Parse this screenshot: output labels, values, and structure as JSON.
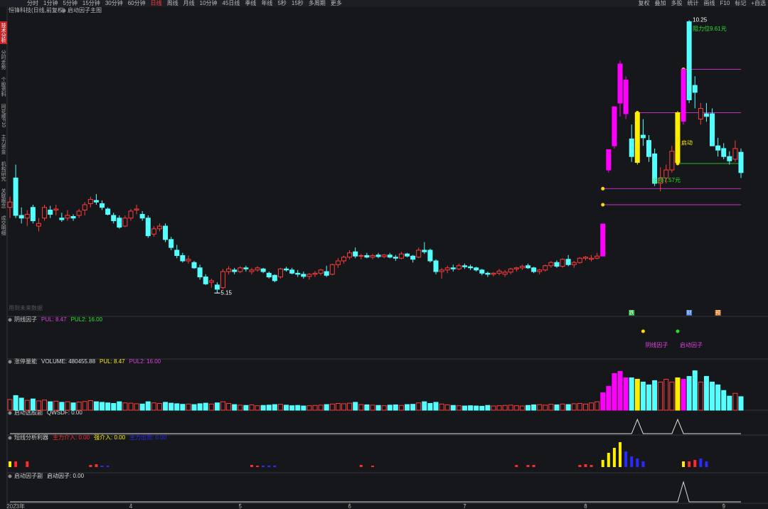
{
  "toolbar": {
    "items": [
      "分时",
      "1分钟",
      "5分钟",
      "15分钟",
      "30分钟",
      "60分钟",
      "日线",
      "周线",
      "月线",
      "10分钟",
      "45日线",
      "季线",
      "年线",
      "5秒",
      "15秒",
      "多周期",
      "更多"
    ],
    "active_index": 6,
    "right_items": [
      "复权",
      "叠加",
      "多股",
      "统计",
      "画线",
      "F10",
      "标记",
      "+自选"
    ]
  },
  "sidebar": {
    "items": [
      "技术分析",
      "分时走势",
      "个股资料",
      "同花顺F10",
      "主力资金",
      "机构研究",
      "关联概念",
      "成交明细"
    ],
    "active_index": 0
  },
  "header": {
    "stock": "恒锋科技(日线,前复权)",
    "indicator": "启动因子主图"
  },
  "main": {
    "type": "candlestick",
    "ylim": [
      4.78,
      10.36
    ],
    "up_color": "#ff3b3b",
    "down_color": "#54ffff",
    "candles": [
      [
        6.75,
        6.95,
        6.55,
        6.85
      ],
      [
        7.3,
        7.55,
        6.55,
        6.6
      ],
      [
        6.6,
        6.75,
        6.45,
        6.55
      ],
      [
        6.55,
        6.7,
        6.4,
        6.62
      ],
      [
        6.75,
        6.8,
        6.45,
        6.5
      ],
      [
        6.4,
        6.55,
        6.3,
        6.45
      ],
      [
        6.55,
        6.8,
        6.5,
        6.75
      ],
      [
        6.7,
        6.78,
        6.55,
        6.62
      ],
      [
        6.7,
        6.8,
        6.6,
        6.72
      ],
      [
        6.55,
        6.65,
        6.48,
        6.52
      ],
      [
        6.55,
        6.7,
        6.5,
        6.6
      ],
      [
        6.58,
        6.62,
        6.5,
        6.55
      ],
      [
        6.6,
        6.72,
        6.55,
        6.68
      ],
      [
        6.7,
        6.85,
        6.6,
        6.8
      ],
      [
        6.82,
        6.95,
        6.75,
        6.9
      ],
      [
        6.88,
        7.0,
        6.8,
        6.85
      ],
      [
        6.82,
        6.88,
        6.7,
        6.75
      ],
      [
        6.72,
        6.75,
        6.6,
        6.62
      ],
      [
        6.6,
        6.65,
        6.45,
        6.5
      ],
      [
        6.55,
        6.6,
        6.35,
        6.38
      ],
      [
        6.4,
        6.6,
        6.38,
        6.55
      ],
      [
        6.55,
        6.72,
        6.5,
        6.68
      ],
      [
        6.7,
        6.8,
        6.62,
        6.72
      ],
      [
        6.62,
        6.68,
        6.5,
        6.55
      ],
      [
        6.55,
        6.6,
        6.18,
        6.22
      ],
      [
        6.25,
        6.4,
        6.2,
        6.35
      ],
      [
        6.35,
        6.45,
        6.3,
        6.4
      ],
      [
        6.4,
        6.45,
        6.1,
        6.15
      ],
      [
        6.15,
        6.2,
        5.95,
        6.0
      ],
      [
        5.95,
        6.05,
        5.8,
        5.85
      ],
      [
        5.85,
        5.9,
        5.72,
        5.75
      ],
      [
        5.75,
        5.85,
        5.7,
        5.78
      ],
      [
        5.72,
        5.75,
        5.6,
        5.62
      ],
      [
        5.62,
        5.68,
        5.4,
        5.45
      ],
      [
        5.45,
        5.5,
        5.3,
        5.32
      ],
      [
        5.35,
        5.42,
        5.25,
        5.38
      ],
      [
        5.3,
        5.35,
        5.15,
        5.22
      ],
      [
        5.25,
        5.6,
        5.22,
        5.55
      ],
      [
        5.55,
        5.65,
        5.5,
        5.6
      ],
      [
        5.58,
        5.62,
        5.5,
        5.55
      ],
      [
        5.55,
        5.65,
        5.52,
        5.62
      ],
      [
        5.62,
        5.66,
        5.55,
        5.6
      ],
      [
        5.55,
        5.62,
        5.5,
        5.58
      ],
      [
        5.58,
        5.65,
        5.55,
        5.62
      ],
      [
        5.6,
        5.62,
        5.52,
        5.55
      ],
      [
        5.52,
        5.55,
        5.42,
        5.45
      ],
      [
        5.48,
        5.5,
        5.35,
        5.38
      ],
      [
        5.45,
        5.62,
        5.42,
        5.6
      ],
      [
        5.6,
        5.64,
        5.55,
        5.58
      ],
      [
        5.58,
        5.62,
        5.5,
        5.52
      ],
      [
        5.52,
        5.58,
        5.45,
        5.5
      ],
      [
        5.5,
        5.55,
        5.42,
        5.46
      ],
      [
        5.46,
        5.52,
        5.4,
        5.5
      ],
      [
        5.5,
        5.56,
        5.45,
        5.52
      ],
      [
        5.52,
        5.6,
        5.48,
        5.58
      ],
      [
        5.55,
        5.66,
        5.45,
        5.48
      ],
      [
        5.5,
        5.7,
        5.48,
        5.68
      ],
      [
        5.68,
        5.8,
        5.62,
        5.75
      ],
      [
        5.75,
        5.85,
        5.7,
        5.82
      ],
      [
        5.82,
        5.95,
        5.78,
        5.9
      ],
      [
        5.92,
        6.0,
        5.8,
        5.84
      ],
      [
        5.84,
        5.88,
        5.78,
        5.85
      ],
      [
        5.85,
        5.9,
        5.8,
        5.82
      ],
      [
        5.82,
        5.88,
        5.78,
        5.85
      ],
      [
        5.86,
        5.9,
        5.8,
        5.83
      ],
      [
        5.83,
        5.88,
        5.8,
        5.86
      ],
      [
        5.86,
        5.9,
        5.8,
        5.82
      ],
      [
        5.82,
        5.86,
        5.75,
        5.8
      ],
      [
        5.8,
        5.92,
        5.78,
        5.88
      ],
      [
        5.88,
        5.9,
        5.82,
        5.84
      ],
      [
        5.84,
        5.86,
        5.72,
        5.78
      ],
      [
        5.82,
        6.0,
        5.8,
        5.95
      ],
      [
        5.95,
        6.1,
        5.88,
        5.92
      ],
      [
        5.95,
        5.98,
        5.72,
        5.75
      ],
      [
        5.75,
        5.78,
        5.5,
        5.55
      ],
      [
        5.55,
        5.62,
        5.42,
        5.58
      ],
      [
        5.58,
        5.66,
        5.52,
        5.62
      ],
      [
        5.62,
        5.68,
        5.55,
        5.6
      ],
      [
        5.6,
        5.7,
        5.58,
        5.66
      ],
      [
        5.66,
        5.7,
        5.6,
        5.64
      ],
      [
        5.64,
        5.68,
        5.58,
        5.62
      ],
      [
        5.62,
        5.64,
        5.55,
        5.58
      ],
      [
        5.58,
        5.6,
        5.48,
        5.52
      ],
      [
        5.52,
        5.55,
        5.45,
        5.5
      ],
      [
        5.5,
        5.54,
        5.46,
        5.52
      ],
      [
        5.52,
        5.6,
        5.48,
        5.56
      ],
      [
        5.5,
        5.58,
        5.45,
        5.54
      ],
      [
        5.54,
        5.62,
        5.5,
        5.6
      ],
      [
        5.6,
        5.64,
        5.55,
        5.62
      ],
      [
        5.62,
        5.68,
        5.58,
        5.65
      ],
      [
        5.66,
        5.7,
        5.6,
        5.62
      ],
      [
        5.62,
        5.64,
        5.52,
        5.55
      ],
      [
        5.55,
        5.6,
        5.5,
        5.58
      ],
      [
        5.58,
        5.68,
        5.55,
        5.66
      ],
      [
        5.66,
        5.75,
        5.62,
        5.72
      ],
      [
        5.72,
        5.76,
        5.62,
        5.65
      ],
      [
        5.65,
        5.8,
        5.62,
        5.78
      ],
      [
        5.78,
        5.86,
        5.65,
        5.68
      ],
      [
        5.68,
        5.75,
        5.62,
        5.72
      ],
      [
        5.72,
        5.82,
        5.7,
        5.8
      ],
      [
        5.8,
        5.84,
        5.76,
        5.82
      ],
      [
        5.78,
        5.86,
        5.74,
        5.8
      ],
      [
        5.8,
        5.9,
        5.78,
        5.84
      ],
      [
        5.84,
        6.44,
        5.84,
        6.44
      ],
      [
        7.45,
        7.83,
        7.4,
        7.83
      ],
      [
        7.9,
        8.63,
        7.85,
        8.63
      ],
      [
        8.7,
        9.49,
        8.45,
        9.43
      ],
      [
        8.5,
        9.2,
        8.4,
        9.13
      ],
      [
        8.03,
        8.3,
        7.6,
        7.7
      ],
      [
        7.59,
        8.55,
        7.55,
        8.52
      ],
      [
        8.1,
        8.4,
        7.9,
        8.05
      ],
      [
        8.0,
        8.1,
        7.6,
        7.7
      ],
      [
        7.75,
        7.85,
        7.15,
        7.2
      ],
      [
        7.2,
        7.5,
        7.05,
        7.3
      ],
      [
        7.3,
        7.55,
        7.2,
        7.45
      ],
      [
        7.45,
        7.9,
        7.4,
        7.8
      ],
      [
        7.59,
        8.55,
        7.55,
        8.52
      ],
      [
        8.36,
        9.35,
        8.3,
        9.33
      ],
      [
        10.22,
        10.25,
        8.7,
        8.76
      ],
      [
        9.03,
        9.2,
        8.6,
        8.9
      ],
      [
        8.4,
        8.7,
        8.3,
        8.6
      ],
      [
        8.5,
        8.7,
        8.35,
        8.45
      ],
      [
        8.5,
        8.6,
        7.9,
        7.9
      ],
      [
        7.9,
        8.05,
        7.7,
        7.82
      ],
      [
        7.85,
        7.95,
        7.65,
        7.7
      ],
      [
        7.7,
        7.8,
        7.55,
        7.62
      ],
      [
        7.65,
        8.0,
        7.6,
        7.85
      ],
      [
        7.78,
        7.85,
        7.3,
        7.4
      ]
    ],
    "highlight": [
      {
        "index": 103,
        "color": "#ff00ff"
      },
      {
        "index": 104,
        "color": "#ff00ff"
      },
      {
        "index": 105,
        "color": "#ff00ff"
      },
      {
        "index": 106,
        "color": "#ff00ff"
      },
      {
        "index": 107,
        "color": "#ff00ff"
      },
      {
        "index": 109,
        "color": "#ffee00"
      },
      {
        "index": 116,
        "color": "#ffee00"
      },
      {
        "index": 117,
        "color": "#ff00ff"
      }
    ],
    "levels": [
      {
        "value": 9.33,
        "start": 117,
        "color": "#c030c0"
      },
      {
        "value": 8.52,
        "start": 109,
        "color": "#c030c0"
      },
      {
        "value": 7.57,
        "start": 116,
        "color": "#20c020"
      },
      {
        "value": 7.1,
        "start": 103,
        "color": "#c030c0"
      },
      {
        "value": 6.8,
        "start": 103,
        "color": "#c030c0"
      }
    ],
    "annotations": [
      {
        "text": "10.25",
        "index": 118,
        "value": 10.25,
        "color": "#ffffff"
      },
      {
        "text": "阻力位9.61元",
        "index": 118,
        "value": 10.08,
        "color": "#30e030"
      },
      {
        "text": "启动",
        "index": 116,
        "value": 7.95,
        "color": "#ffee00"
      },
      {
        "text": "止损7.57元",
        "index": 111,
        "value": 7.25,
        "color": "#30e030"
      },
      {
        "text": "5.15",
        "index": 36,
        "value": 5.15,
        "color": "#ffffff"
      }
    ],
    "note": "用到未来数据",
    "events": [
      {
        "index": 108,
        "label": "跌",
        "color": "#1fa83a"
      },
      {
        "index": 118,
        "label": "财",
        "color": "#2f6fd0"
      },
      {
        "index": 123,
        "label": "预",
        "color": "#d07020"
      }
    ]
  },
  "xaxis": [
    {
      "value": 1,
      "label": "2023年"
    },
    {
      "value": 21,
      "label": "4"
    },
    {
      "value": 40,
      "label": "5"
    },
    {
      "value": 59,
      "label": "6"
    },
    {
      "value": 79,
      "label": "7"
    },
    {
      "value": 100,
      "label": "8"
    },
    {
      "value": 124,
      "label": "9"
    }
  ],
  "panel1": {
    "title": "阴线因子",
    "readouts": [
      {
        "text": "PUL: 8.47",
        "color": "#e040e0"
      },
      {
        "text": "PUL2: 16.00",
        "color": "#30e030"
      }
    ],
    "signals": [
      {
        "index": 110,
        "label": "阴线因子",
        "color": "#ffd700"
      },
      {
        "index": 116,
        "label": "启动因子",
        "color": "#20e020"
      }
    ]
  },
  "panel2": {
    "title": "涨停量能",
    "readouts": [
      {
        "text": "VOLUME: 480455.88",
        "color": "#dddddd"
      },
      {
        "text": "PUL: 8.47",
        "color": "#ffee00"
      },
      {
        "text": "PUL2: 16.00",
        "color": "#e040e0"
      }
    ],
    "ylim": [
      0,
      1440000
    ],
    "volume": [
      380000,
      520000,
      430000,
      350000,
      400000,
      330000,
      360000,
      300000,
      320000,
      280000,
      300000,
      260000,
      290000,
      310000,
      340000,
      300000,
      280000,
      260000,
      240000,
      300000,
      260000,
      250000,
      230000,
      220000,
      300000,
      260000,
      240000,
      280000,
      250000,
      230000,
      210000,
      220000,
      200000,
      230000,
      250000,
      220000,
      260000,
      300000,
      240000,
      200000,
      180000,
      170000,
      190000,
      160000,
      170000,
      180000,
      200000,
      210000,
      180000,
      160000,
      170000,
      150000,
      160000,
      170000,
      180000,
      200000,
      220000,
      240000,
      230000,
      250000,
      280000,
      200000,
      190000,
      180000,
      170000,
      160000,
      180000,
      190000,
      170000,
      200000,
      210000,
      260000,
      300000,
      240000,
      280000,
      220000,
      190000,
      170000,
      160000,
      150000,
      160000,
      150000,
      140000,
      170000,
      150000,
      160000,
      170000,
      180000,
      160000,
      150000,
      170000,
      190000,
      200000,
      180000,
      210000,
      190000,
      220000,
      200000,
      230000,
      240000,
      220000,
      260000,
      300000,
      620000,
      850000,
      1300000,
      1380000,
      1150000,
      1150000,
      1100000,
      1000000,
      900000,
      1050000,
      1000000,
      1100000,
      1000000,
      1150000,
      1100000,
      1200000,
      1400000,
      1000000,
      1200000,
      1000000,
      900000,
      700000,
      500000,
      600000,
      480455.88
    ]
  },
  "panel3": {
    "title": "启动选股副",
    "readouts": [
      {
        "text": "QWSDF: 0.00",
        "color": "#dddddd"
      }
    ],
    "ylim": [
      0,
      1
    ],
    "color": "#dddddd",
    "values": [
      0,
      0,
      0,
      0,
      0,
      0,
      0,
      0,
      0,
      0,
      0,
      0,
      0,
      0,
      0,
      0,
      0,
      0,
      0,
      0,
      0,
      0,
      0,
      0,
      0,
      0,
      0,
      0,
      0,
      0,
      0,
      0,
      0,
      0,
      0,
      0,
      0,
      0,
      0,
      0,
      0,
      0,
      0,
      0,
      0,
      0,
      0,
      0,
      0,
      0,
      0,
      0,
      0,
      0,
      0,
      0,
      0,
      0,
      0,
      0,
      0,
      0,
      0,
      0,
      0,
      0,
      0,
      0,
      0,
      0,
      0,
      0,
      0,
      0,
      0,
      0,
      0,
      0,
      0,
      0,
      0,
      0,
      0,
      0,
      0,
      0,
      0,
      0,
      0,
      0,
      0,
      0,
      0,
      0,
      0,
      0,
      0,
      0,
      0,
      0,
      0,
      0,
      0,
      0,
      0,
      0,
      0,
      0,
      0,
      1,
      0,
      0,
      0,
      0,
      0,
      0,
      1,
      0,
      0,
      0,
      0,
      0,
      0,
      0,
      0,
      0,
      0,
      0
    ]
  },
  "panel4": {
    "title": "短线分析利器",
    "ylim": [
      0,
      40
    ],
    "series": [
      {
        "label": "主力介入: 0.00",
        "color": "#ff2a2a",
        "x": [
          1,
          3,
          14,
          15,
          42,
          43,
          61,
          63,
          88,
          90,
          91,
          99,
          100,
          101,
          118,
          119
        ],
        "values": [
          8,
          8,
          3,
          4,
          3,
          2,
          3,
          2,
          3,
          3,
          3,
          3,
          4,
          3,
          8,
          10
        ]
      },
      {
        "label": "强介入: 0.00",
        "color": "#ffee00",
        "x": [
          0,
          103,
          104,
          105,
          106,
          117
        ],
        "values": [
          8,
          10,
          20,
          27,
          35,
          8
        ]
      },
      {
        "label": "主力出货: 0.00",
        "color": "#2a2aff",
        "x": [
          16,
          17,
          44,
          45,
          46,
          107,
          108,
          109,
          110,
          120,
          121
        ],
        "values": [
          2,
          2,
          2,
          2,
          2,
          22,
          15,
          12,
          8,
          12,
          8
        ]
      }
    ]
  },
  "panel5": {
    "title": "启动因子副",
    "readouts": [
      {
        "text": "启动因子: 0.00",
        "color": "#dddddd"
      }
    ],
    "ylim": [
      0,
      1
    ],
    "color": "#dddddd",
    "values": [
      0,
      0,
      0,
      0,
      0,
      0,
      0,
      0,
      0,
      0,
      0,
      0,
      0,
      0,
      0,
      0,
      0,
      0,
      0,
      0,
      0,
      0,
      0,
      0,
      0,
      0,
      0,
      0,
      0,
      0,
      0,
      0,
      0,
      0,
      0,
      0,
      0,
      0,
      0,
      0,
      0,
      0,
      0,
      0,
      0,
      0,
      0,
      0,
      0,
      0,
      0,
      0,
      0,
      0,
      0,
      0,
      0,
      0,
      0,
      0,
      0,
      0,
      0,
      0,
      0,
      0,
      0,
      0,
      0,
      0,
      0,
      0,
      0,
      0,
      0,
      0,
      0,
      0,
      0,
      0,
      0,
      0,
      0,
      0,
      0,
      0,
      0,
      0,
      0,
      0,
      0,
      0,
      0,
      0,
      0,
      0,
      0,
      0,
      0,
      0,
      0,
      0,
      0,
      0,
      0,
      0,
      0,
      0,
      0,
      0,
      0,
      0,
      0,
      0,
      0,
      0,
      0,
      1,
      0,
      0,
      0,
      0,
      0,
      0,
      0,
      0,
      0,
      0
    ]
  }
}
